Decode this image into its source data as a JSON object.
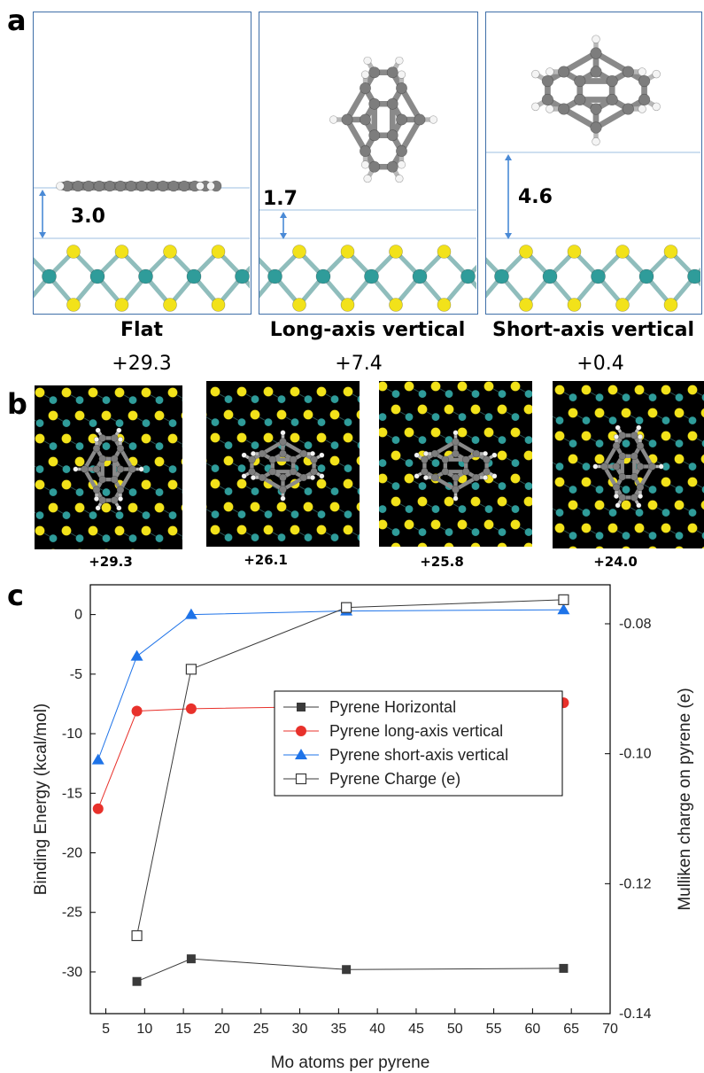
{
  "panel_a": {
    "letter": "a",
    "boxes": [
      {
        "gap": "3.0",
        "caption": "Flat"
      },
      {
        "gap": "1.7",
        "caption": "Long-axis vertical"
      },
      {
        "gap": "4.6",
        "caption": "Short-axis vertical"
      }
    ],
    "energies": [
      "+29.3",
      "+7.4",
      "+0.4"
    ]
  },
  "panel_b": {
    "letter": "b",
    "energies": [
      "+29.3",
      "+26.1",
      "+25.8",
      "+24.0"
    ]
  },
  "panel_c": {
    "letter": "c"
  },
  "colors": {
    "sulfur": "#f2e21a",
    "molybdenum": "#2f9c9a",
    "carbon": "#7d7d7d",
    "hydrogen": "#f4f4f4",
    "box_border": "#3f6fa8",
    "arrow": "#4a8ad6",
    "series_red": "#e8312b",
    "series_blue": "#1e73e8",
    "series_dark": "#3a3a3a"
  },
  "chart_data": {
    "type": "line",
    "xlabel": "Mo atoms per pyrene",
    "ylabel": "Binding Energy (kcal/mol)",
    "y2label": "Mulliken charge on pyrene (e)",
    "xlim": [
      3,
      70
    ],
    "ylim": [
      -33.5,
      2.5
    ],
    "y2lim": [
      -0.14,
      -0.074
    ],
    "xticks": [
      5,
      10,
      15,
      20,
      25,
      30,
      35,
      40,
      45,
      50,
      55,
      60,
      65,
      70
    ],
    "yticks": [
      0,
      -5,
      -10,
      -15,
      -20,
      -25,
      -30
    ],
    "y2ticks": [
      -0.08,
      -0.1,
      -0.12,
      -0.14
    ],
    "legend_position": "center-right",
    "series": [
      {
        "name": "Pyrene Horizontal",
        "axis": "left",
        "marker": "filled-square",
        "color": "#3a3a3a",
        "x": [
          9,
          16,
          36,
          64
        ],
        "y": [
          -30.8,
          -28.9,
          -29.8,
          -29.7
        ]
      },
      {
        "name": "Pyrene long-axis vertical",
        "axis": "left",
        "marker": "filled-circle",
        "color": "#e8312b",
        "x": [
          4,
          9,
          16,
          36,
          64
        ],
        "y": [
          -16.3,
          -8.1,
          -7.9,
          -7.7,
          -7.4
        ]
      },
      {
        "name": "Pyrene short-axis vertical",
        "axis": "left",
        "marker": "filled-triangle",
        "color": "#1e73e8",
        "x": [
          4,
          9,
          16,
          36,
          64
        ],
        "y": [
          -12.2,
          -3.5,
          0.0,
          0.3,
          0.4
        ]
      },
      {
        "name": "Pyrene Charge (e)",
        "axis": "right",
        "marker": "open-square",
        "color": "#3a3a3a",
        "x": [
          9,
          16,
          36,
          64
        ],
        "y": [
          -0.128,
          -0.087,
          -0.0775,
          -0.0763
        ]
      }
    ]
  }
}
